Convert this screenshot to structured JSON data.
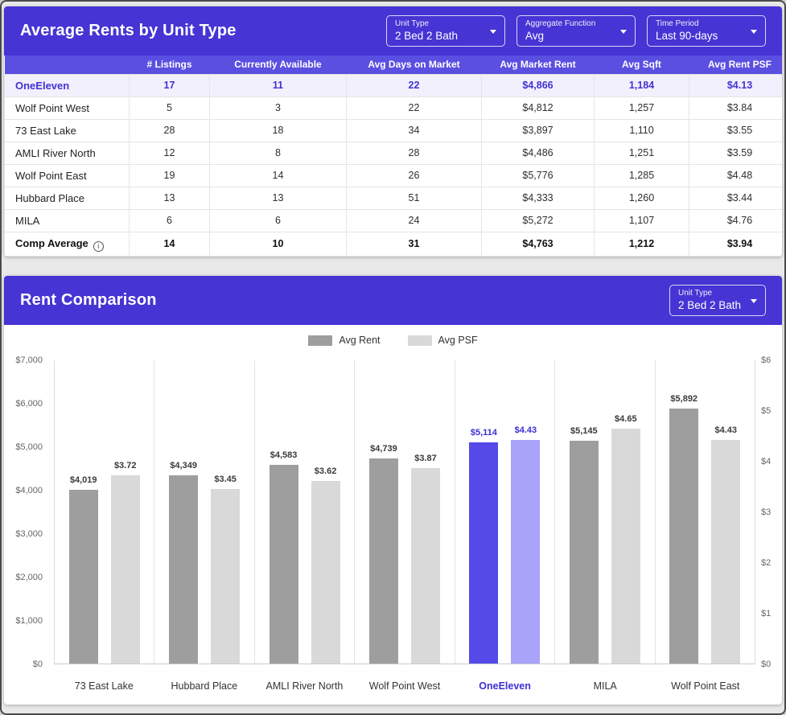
{
  "colors": {
    "header_bg": "#4634d4",
    "table_header_bg": "#5a4fe0",
    "highlight_text": "#4132d4",
    "highlight_row_bg": "#f2f0fd",
    "bar_rent": "#9e9e9e",
    "bar_psf": "#d9d9d9",
    "bar_rent_highlight": "#554ae8",
    "bar_psf_highlight": "#a9a3fa"
  },
  "rents_table": {
    "title": "Average Rents by Unit Type",
    "controls": [
      {
        "label": "Unit Type",
        "value": "2 Bed 2 Bath"
      },
      {
        "label": "Aggregate Function",
        "value": "Avg"
      },
      {
        "label": "Time Period",
        "value": "Last 90-days"
      }
    ],
    "columns": [
      "",
      "# Listings",
      "Currently Available",
      "Avg Days on Market",
      "Avg Market Rent",
      "Avg Sqft",
      "Avg Rent PSF"
    ],
    "rows": [
      {
        "name": "OneEleven",
        "highlight": true,
        "values": [
          "17",
          "11",
          "22",
          "$4,866",
          "1,184",
          "$4.13"
        ]
      },
      {
        "name": "Wolf Point West",
        "highlight": false,
        "values": [
          "5",
          "3",
          "22",
          "$4,812",
          "1,257",
          "$3.84"
        ]
      },
      {
        "name": "73 East Lake",
        "highlight": false,
        "values": [
          "28",
          "18",
          "34",
          "$3,897",
          "1,110",
          "$3.55"
        ]
      },
      {
        "name": "AMLI River North",
        "highlight": false,
        "values": [
          "12",
          "8",
          "28",
          "$4,486",
          "1,251",
          "$3.59"
        ]
      },
      {
        "name": "Wolf Point East",
        "highlight": false,
        "values": [
          "19",
          "14",
          "26",
          "$5,776",
          "1,285",
          "$4.48"
        ]
      },
      {
        "name": "Hubbard Place",
        "highlight": false,
        "values": [
          "13",
          "13",
          "51",
          "$4,333",
          "1,260",
          "$3.44"
        ]
      },
      {
        "name": "MILA",
        "highlight": false,
        "values": [
          "6",
          "6",
          "24",
          "$5,272",
          "1,107",
          "$4.76"
        ]
      }
    ],
    "footer": {
      "name": "Comp Average",
      "info_glyph": "i",
      "values": [
        "14",
        "10",
        "31",
        "$4,763",
        "1,212",
        "$3.94"
      ]
    }
  },
  "comparison": {
    "title": "Rent Comparison",
    "controls": [
      {
        "label": "Unit Type",
        "value": "2 Bed 2 Bath"
      }
    ]
  },
  "chart_data": {
    "type": "bar",
    "title": "Rent Comparison",
    "categories": [
      "73 East Lake",
      "Hubbard Place",
      "AMLI River North",
      "Wolf Point West",
      "OneEleven",
      "MILA",
      "Wolf Point East"
    ],
    "highlight_category": "OneEleven",
    "series": [
      {
        "name": "Avg Rent",
        "axis": "left",
        "values": [
          4019,
          4349,
          4583,
          4739,
          5114,
          5145,
          5892
        ],
        "labels": [
          "$4,019",
          "$4,349",
          "$4,583",
          "$4,739",
          "$5,114",
          "$5,145",
          "$5,892"
        ]
      },
      {
        "name": "Avg PSF",
        "axis": "right",
        "values": [
          3.72,
          3.45,
          3.62,
          3.87,
          4.43,
          4.65,
          4.43
        ],
        "labels": [
          "$3.72",
          "$3.45",
          "$3.62",
          "$3.87",
          "$4.43",
          "$4.65",
          "$4.43"
        ]
      }
    ],
    "left_axis": {
      "max": 7000,
      "min": 0,
      "ticks": [
        "$7,000",
        "$6,000",
        "$5,000",
        "$4,000",
        "$3,000",
        "$2,000",
        "$1,000",
        "$0"
      ]
    },
    "right_axis": {
      "max": 6,
      "min": 0,
      "ticks": [
        "$6",
        "$5",
        "$4",
        "$3",
        "$2",
        "$1",
        "$0"
      ]
    },
    "legend": [
      "Avg Rent",
      "Avg PSF"
    ],
    "legend_position": "top-center",
    "grid": "vertical-only"
  }
}
